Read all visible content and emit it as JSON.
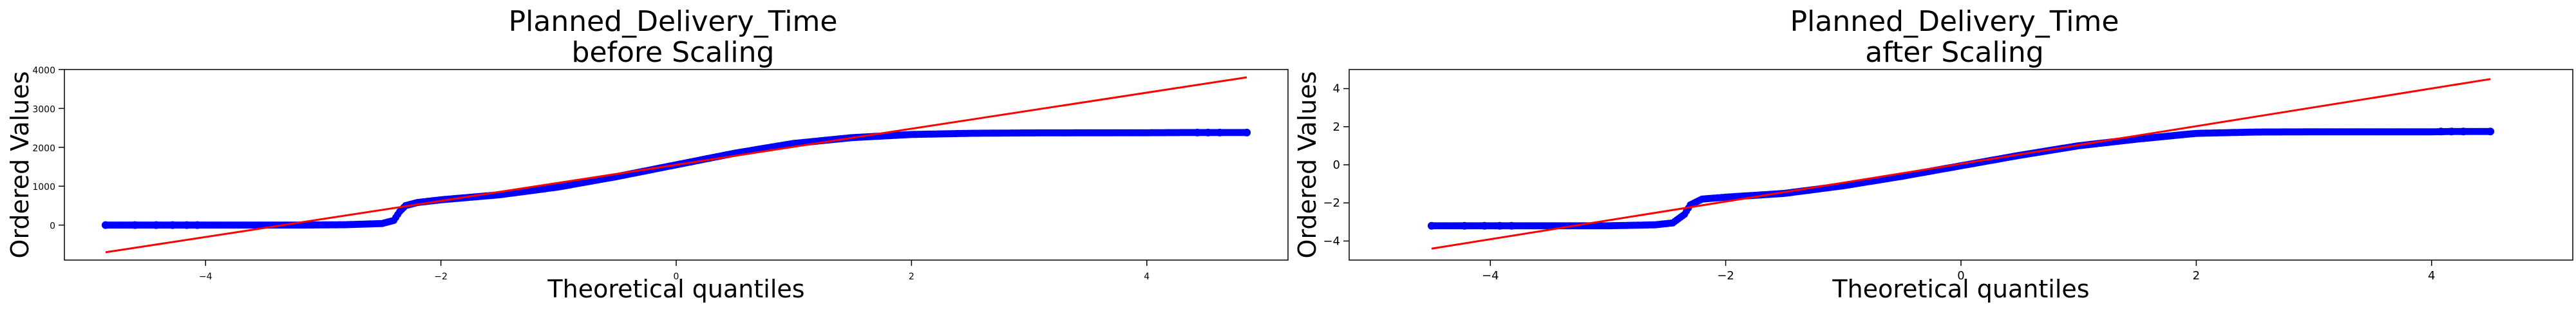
{
  "chart_data": [
    {
      "type": "scatter",
      "title_line1": "Planned_Delivery_Time",
      "title_line2": "before Scaling",
      "xlabel": "Theoretical quantiles",
      "ylabel": "Ordered Values",
      "xlim": [
        -5.2,
        5.2
      ],
      "ylim": [
        -900,
        4000
      ],
      "xticks": [
        -4,
        -2,
        0,
        2,
        4
      ],
      "xtick_labels": [
        "−4",
        "−2",
        "0",
        "2",
        "4"
      ],
      "yticks": [
        0,
        1000,
        2000,
        3000,
        4000
      ],
      "ytick_labels": [
        "0",
        "1000",
        "2000",
        "3000",
        "4000"
      ],
      "grid": false,
      "fit_line": {
        "x": [
          -4.85,
          4.85
        ],
        "y": [
          -700,
          3800
        ],
        "color": "#ff0000"
      },
      "points_color": "#0000ff",
      "curve": [
        [
          -4.85,
          0
        ],
        [
          -4.6,
          0
        ],
        [
          -4.4,
          0
        ],
        [
          -4.2,
          0
        ],
        [
          -4.0,
          0
        ],
        [
          -3.6,
          0
        ],
        [
          -3.2,
          0
        ],
        [
          -2.8,
          10
        ],
        [
          -2.5,
          40
        ],
        [
          -2.4,
          120
        ],
        [
          -2.35,
          350
        ],
        [
          -2.3,
          500
        ],
        [
          -2.2,
          580
        ],
        [
          -2.0,
          650
        ],
        [
          -1.5,
          780
        ],
        [
          -1.0,
          980
        ],
        [
          -0.5,
          1250
        ],
        [
          0.0,
          1550
        ],
        [
          0.5,
          1850
        ],
        [
          1.0,
          2100
        ],
        [
          1.5,
          2250
        ],
        [
          2.0,
          2330
        ],
        [
          2.5,
          2360
        ],
        [
          3.0,
          2370
        ],
        [
          4.0,
          2375
        ],
        [
          4.4,
          2380
        ],
        [
          4.85,
          2380
        ]
      ],
      "sparse_points": [
        [
          -4.85,
          0
        ],
        [
          -4.6,
          0
        ],
        [
          -4.42,
          0
        ],
        [
          -4.28,
          0
        ],
        [
          -4.16,
          0
        ],
        [
          -4.07,
          0
        ],
        [
          4.43,
          2380
        ],
        [
          4.52,
          2380
        ],
        [
          4.62,
          2380
        ],
        [
          4.85,
          2380
        ]
      ]
    },
    {
      "type": "scatter",
      "title_line1": "Planned_Delivery_Time",
      "title_line2": "after Scaling",
      "xlabel": "Theoretical quantiles",
      "ylabel": "Ordered Values",
      "xlim": [
        -5.2,
        5.2
      ],
      "ylim": [
        -5,
        5
      ],
      "xticks": [
        -4,
        -2,
        0,
        2,
        4
      ],
      "xtick_labels": [
        "−4",
        "−2",
        "0",
        "2",
        "4"
      ],
      "yticks": [
        -4,
        -2,
        0,
        2,
        4
      ],
      "ytick_labels": [
        "−4",
        "−2",
        "0",
        "2",
        "4"
      ],
      "grid": false,
      "fit_line": {
        "x": [
          -4.5,
          4.5
        ],
        "y": [
          -4.4,
          4.5
        ],
        "color": "#ff0000"
      },
      "points_color": "#0000ff",
      "curve": [
        [
          -4.5,
          -3.2
        ],
        [
          -4.3,
          -3.2
        ],
        [
          -4.1,
          -3.2
        ],
        [
          -3.8,
          -3.2
        ],
        [
          -3.4,
          -3.2
        ],
        [
          -3.0,
          -3.2
        ],
        [
          -2.6,
          -3.15
        ],
        [
          -2.45,
          -3.05
        ],
        [
          -2.35,
          -2.6
        ],
        [
          -2.3,
          -2.1
        ],
        [
          -2.2,
          -1.8
        ],
        [
          -2.0,
          -1.7
        ],
        [
          -1.5,
          -1.5
        ],
        [
          -1.0,
          -1.1
        ],
        [
          -0.5,
          -0.6
        ],
        [
          0.0,
          -0.05
        ],
        [
          0.5,
          0.5
        ],
        [
          1.0,
          1.0
        ],
        [
          1.5,
          1.35
        ],
        [
          2.0,
          1.65
        ],
        [
          2.5,
          1.72
        ],
        [
          3.0,
          1.73
        ],
        [
          4.0,
          1.73
        ],
        [
          4.2,
          1.75
        ],
        [
          4.5,
          1.75
        ]
      ],
      "sparse_points": [
        [
          -4.5,
          -3.2
        ],
        [
          -4.22,
          -3.2
        ],
        [
          -4.05,
          -3.2
        ],
        [
          -3.92,
          -3.2
        ],
        [
          -3.82,
          -3.2
        ],
        [
          4.08,
          1.75
        ],
        [
          4.17,
          1.75
        ],
        [
          4.27,
          1.75
        ],
        [
          4.5,
          1.75
        ]
      ]
    }
  ]
}
